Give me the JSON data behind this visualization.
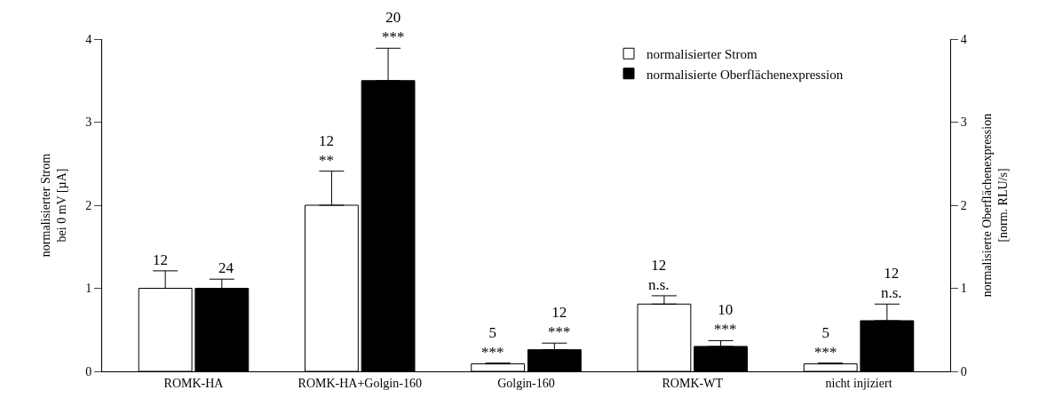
{
  "chart_data": {
    "type": "bar",
    "categories": [
      "ROMK-HA",
      "ROMK-HA+Golgin-160",
      "Golgin-160",
      "ROMK-WT",
      "nicht injiziert"
    ],
    "series": [
      {
        "name": "normalisierter Strom",
        "color": "#ffffff",
        "values": [
          1.0,
          2.0,
          0.09,
          0.81,
          0.09
        ],
        "errors": [
          [
            1.0,
            1.21
          ],
          [
            2.0,
            2.41
          ],
          [
            0.09,
            0.1
          ],
          [
            0.81,
            0.91
          ],
          [
            0.09,
            0.1
          ]
        ]
      },
      {
        "name": "normalisierte Oberflächenexpression",
        "color": "#000000",
        "axis": "y2",
        "values": [
          1.0,
          3.5,
          0.26,
          0.3,
          0.61
        ],
        "errors": [
          [
            1.0,
            1.11
          ],
          [
            3.5,
            3.89
          ],
          [
            0.26,
            0.34
          ],
          [
            0.3,
            0.37
          ],
          [
            0.61,
            0.81
          ]
        ]
      }
    ],
    "annotations": [
      {
        "text": "12",
        "x": "ROMK-HA",
        "y": 1.0
      },
      {
        "text": "24",
        "x": "ROMK-HA",
        "y": 1.0
      },
      {
        "text": "12\n**",
        "x": "ROMK-HA+Golgin-160",
        "y": 2.0
      },
      {
        "text": "20\n***",
        "x": "ROMK-HA+Golgin-160",
        "y": 3.5
      },
      {
        "text": "5\n***",
        "x": "Golgin-160",
        "y": 0.09
      },
      {
        "text": "12\n***",
        "x": "Golgin-160",
        "y": 0.26
      },
      {
        "text": "12\nn.s.",
        "x": "ROMK-WT",
        "y": 0.81
      },
      {
        "text": "10\n***",
        "x": "ROMK-WT",
        "y": 0.3
      },
      {
        "text": "5\n***",
        "x": "nicht injiziert",
        "y": 0.09
      },
      {
        "text": "12\nn.s.",
        "x": "nicht injiziert",
        "y": 0.61
      }
    ],
    "ylabel": "normalisierter Strom\nbei 0 mV [µA]",
    "y2label": "normalisierte Oberflächenexpression\n[norm. RLU/s]",
    "ylim": [
      0,
      4
    ],
    "yticks": [
      0,
      1,
      2,
      3,
      4
    ],
    "y2lim": [
      0,
      4
    ],
    "y2ticks": [
      0,
      1,
      2,
      3,
      4
    ],
    "grid": false,
    "legend": "top right"
  }
}
